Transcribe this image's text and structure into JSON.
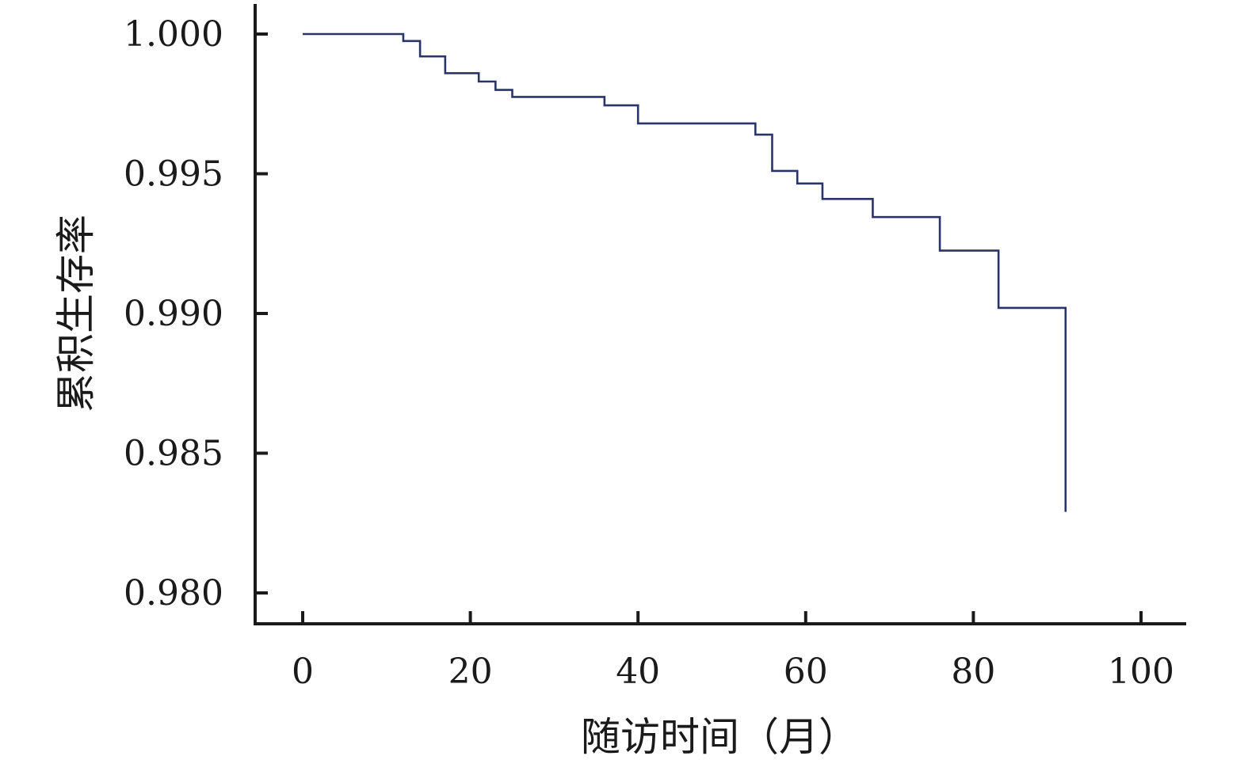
{
  "chart_data": {
    "type": "line",
    "title": "",
    "xlabel": "随访时间（月）",
    "ylabel": "累积生存率",
    "xlim": [
      0,
      100
    ],
    "ylim": [
      0.98,
      1.0
    ],
    "x_ticks": [
      0,
      20,
      40,
      60,
      80,
      100
    ],
    "x_tick_labels": [
      "0",
      "20",
      "40",
      "60",
      "80",
      "100"
    ],
    "y_ticks": [
      1.0,
      0.995,
      0.99,
      0.985,
      0.98
    ],
    "y_tick_labels": [
      "1.000",
      "0.995",
      "0.990",
      "0.985",
      "0.980"
    ],
    "grid": false,
    "line_color": "#2b3467",
    "series": [
      {
        "step": true,
        "points": [
          [
            0,
            1.0
          ],
          [
            12,
            0.99975
          ],
          [
            14,
            0.9992
          ],
          [
            17,
            0.9986
          ],
          [
            21,
            0.9983
          ],
          [
            23,
            0.998
          ],
          [
            25,
            0.99775
          ],
          [
            36,
            0.99745
          ],
          [
            40,
            0.9968
          ],
          [
            54,
            0.9964
          ],
          [
            56,
            0.9951
          ],
          [
            59,
            0.99465
          ],
          [
            62,
            0.9941
          ],
          [
            68,
            0.99345
          ],
          [
            76,
            0.99225
          ],
          [
            83,
            0.9902
          ],
          [
            91,
            0.9829
          ]
        ]
      }
    ]
  }
}
